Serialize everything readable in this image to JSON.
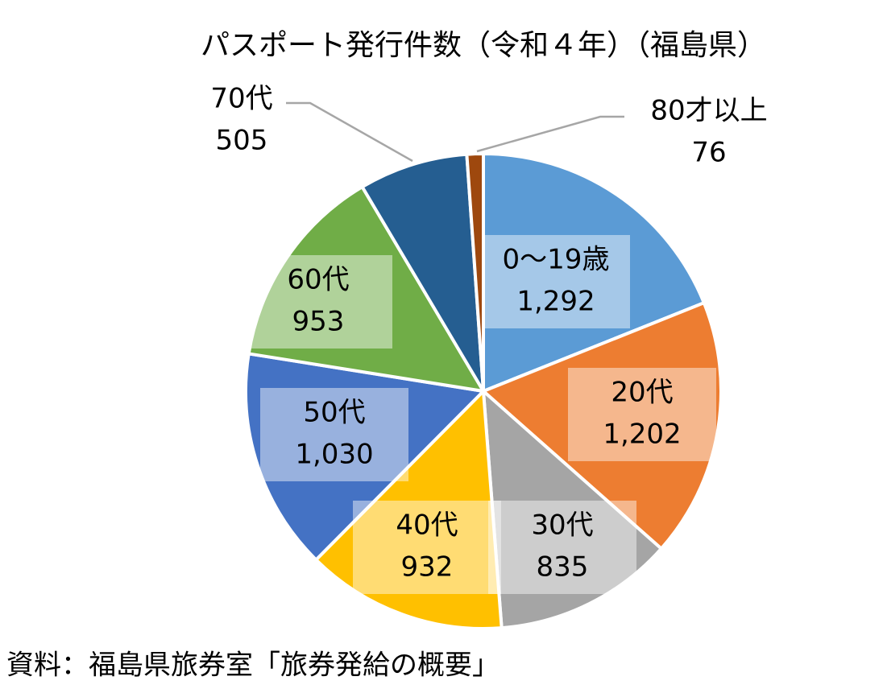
{
  "chart_data": {
    "type": "pie",
    "title": "パスポート発行件数（令和４年）（福島県）",
    "categories": [
      "0～19歳",
      "20代",
      "30代",
      "40代",
      "50代",
      "60代",
      "70代",
      "80才以上"
    ],
    "values": [
      1292,
      1202,
      835,
      932,
      1030,
      953,
      505,
      76
    ],
    "value_labels": [
      "1,292",
      "1,202",
      "835",
      "932",
      "1,030",
      "953",
      "505",
      "76"
    ],
    "colors": [
      "#5b9bd5",
      "#ed7d31",
      "#a5a5a5",
      "#ffc000",
      "#4472c4",
      "#70ad47",
      "#255e91",
      "#9e480e"
    ],
    "source": "資料：福島県旅券室「旅券発給の概要」"
  }
}
